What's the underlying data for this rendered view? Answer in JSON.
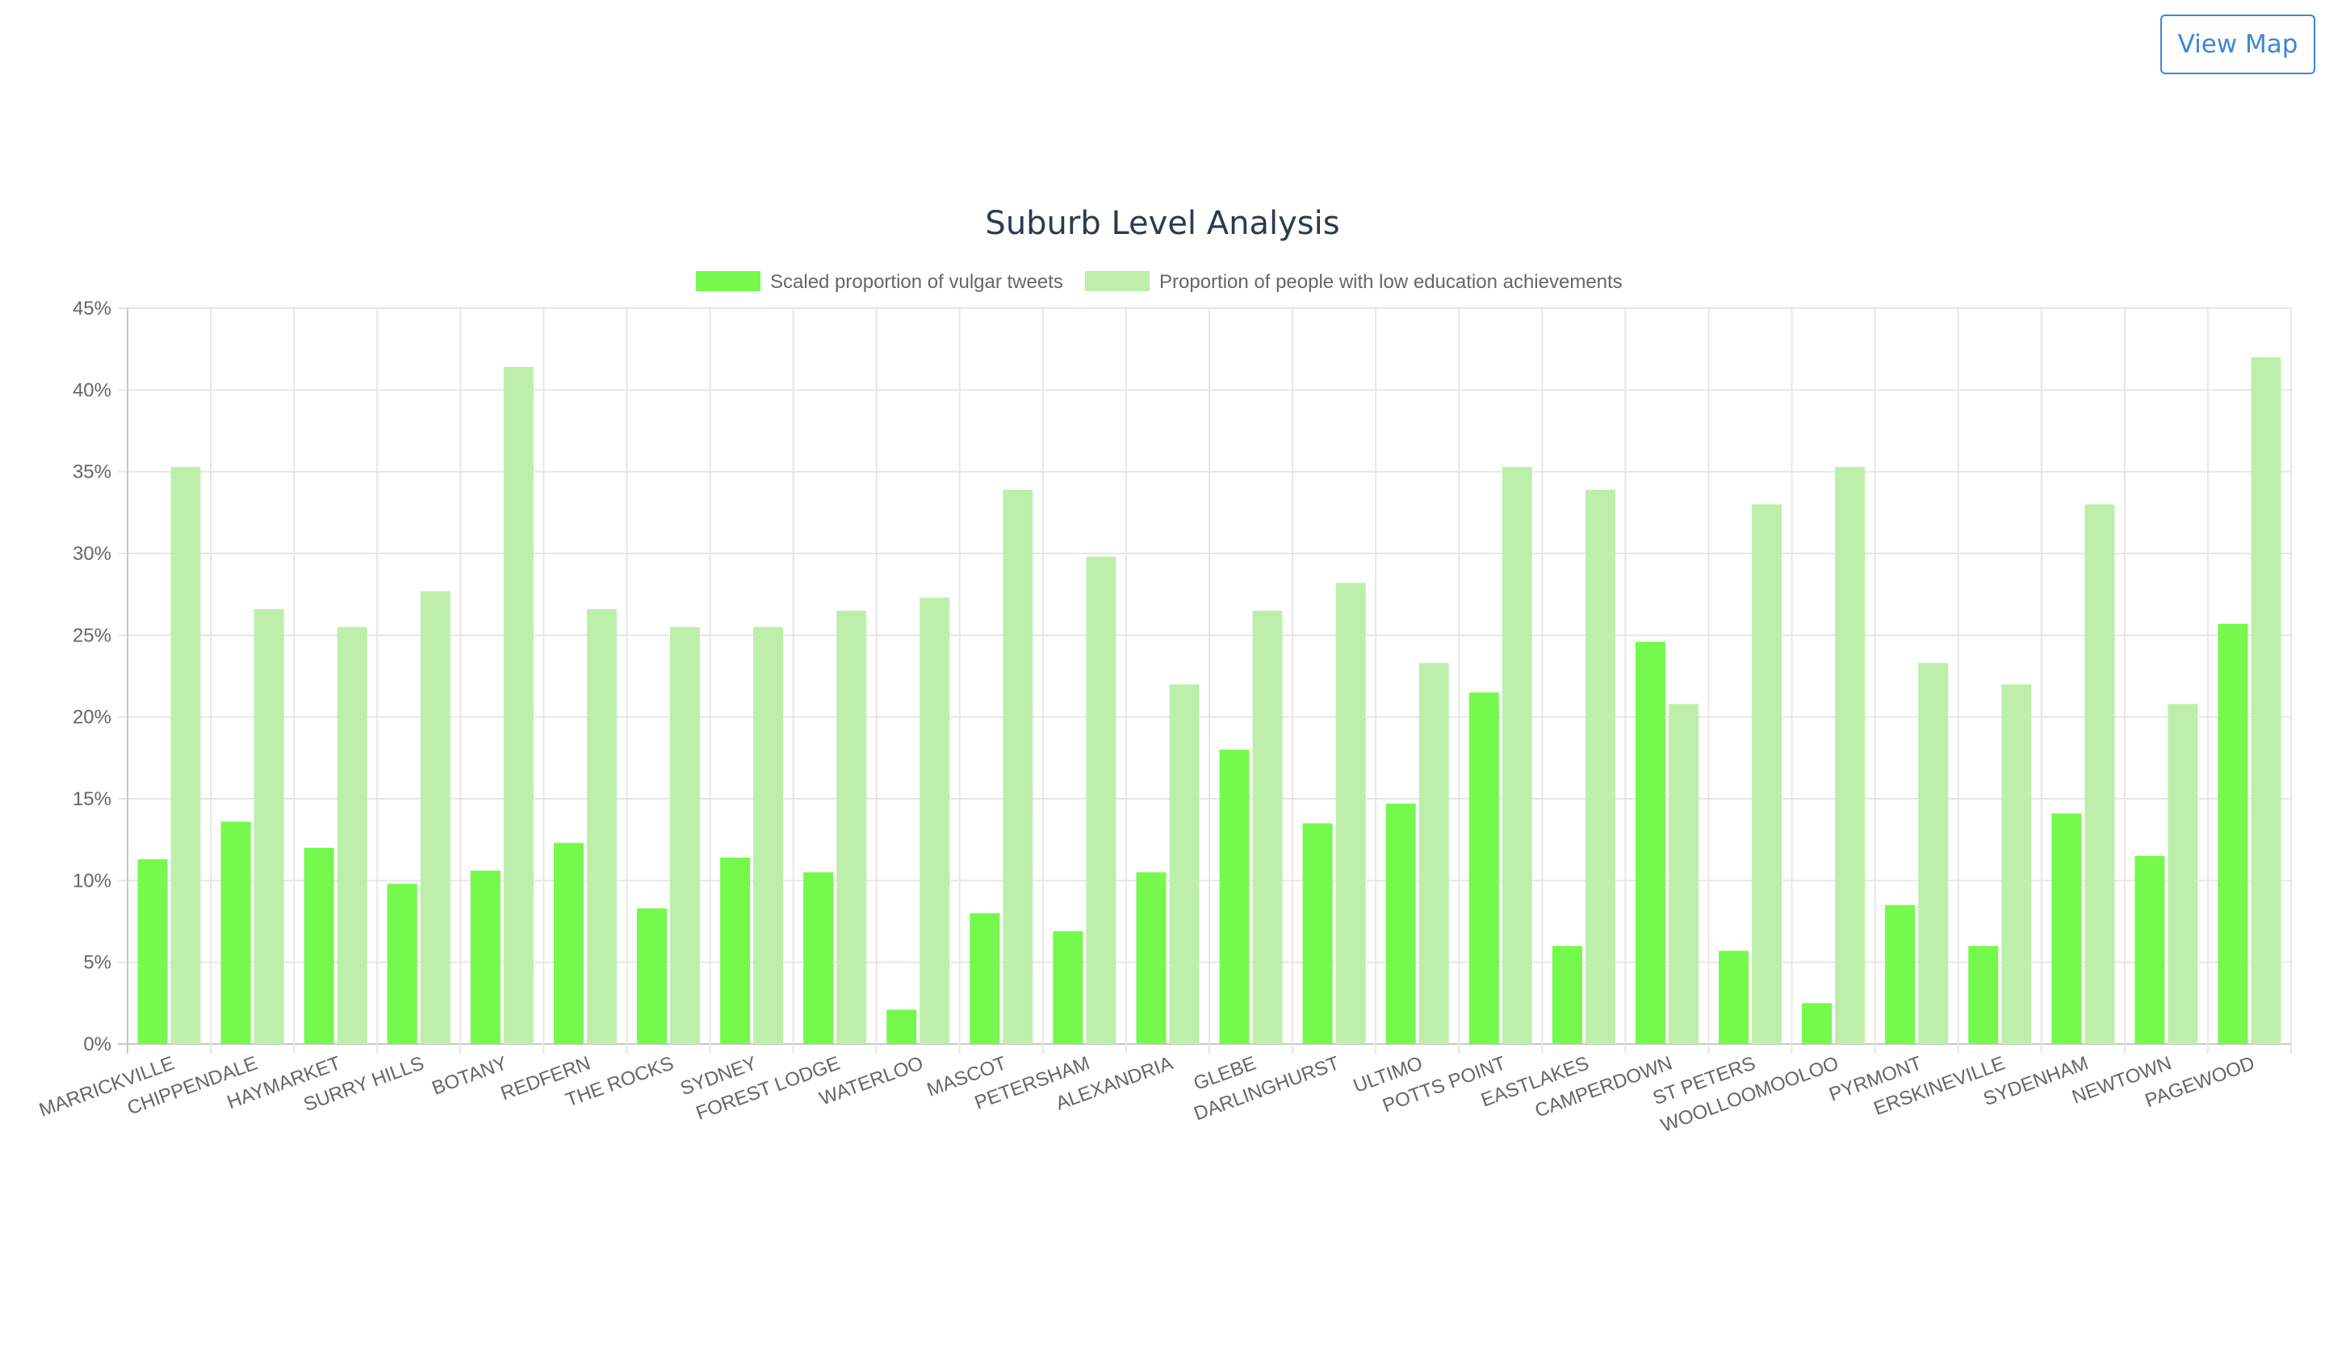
{
  "header": {
    "view_map_label": "View Map"
  },
  "colors": {
    "series1": "#75f94d",
    "series2": "#bdefaa",
    "button": "#3d86d8",
    "grid": "#e6e6e6",
    "text": "#666666",
    "title": "#2c3a4e"
  },
  "chart_data": {
    "type": "bar",
    "title": "Suburb Level Analysis",
    "xlabel": "",
    "ylabel": "",
    "ylim": [
      0,
      45
    ],
    "y_tick_step": 5,
    "y_tick_suffix": "%",
    "grid": true,
    "legend_position": "top-center",
    "categories": [
      "MARRICKVILLE",
      "CHIPPENDALE",
      "HAYMARKET",
      "SURRY HILLS",
      "BOTANY",
      "REDFERN",
      "THE ROCKS",
      "SYDNEY",
      "FOREST LODGE",
      "WATERLOO",
      "MASCOT",
      "PETERSHAM",
      "ALEXANDRIA",
      "GLEBE",
      "DARLINGHURST",
      "ULTIMO",
      "POTTS POINT",
      "EASTLAKES",
      "CAMPERDOWN",
      "ST PETERS",
      "WOOLLOOMOOLOO",
      "PYRMONT",
      "ERSKINEVILLE",
      "SYDENHAM",
      "NEWTOWN",
      "PAGEWOOD"
    ],
    "series": [
      {
        "name": "Scaled proportion of vulgar tweets",
        "values": [
          11.3,
          13.6,
          12.0,
          9.8,
          10.6,
          12.3,
          8.3,
          11.4,
          10.5,
          2.1,
          8.0,
          6.9,
          10.5,
          18.0,
          13.5,
          14.7,
          21.5,
          6.0,
          24.6,
          5.7,
          2.5,
          8.5,
          6.0,
          14.1,
          11.5,
          25.7
        ]
      },
      {
        "name": "Proportion of people with low education achievements",
        "values": [
          35.3,
          26.6,
          25.5,
          27.7,
          41.4,
          26.6,
          25.5,
          25.5,
          26.5,
          27.3,
          33.9,
          29.8,
          22.0,
          26.5,
          28.2,
          23.3,
          35.3,
          33.9,
          20.8,
          33.0,
          35.3,
          23.3,
          22.0,
          33.0,
          20.8,
          42.0
        ]
      }
    ]
  }
}
